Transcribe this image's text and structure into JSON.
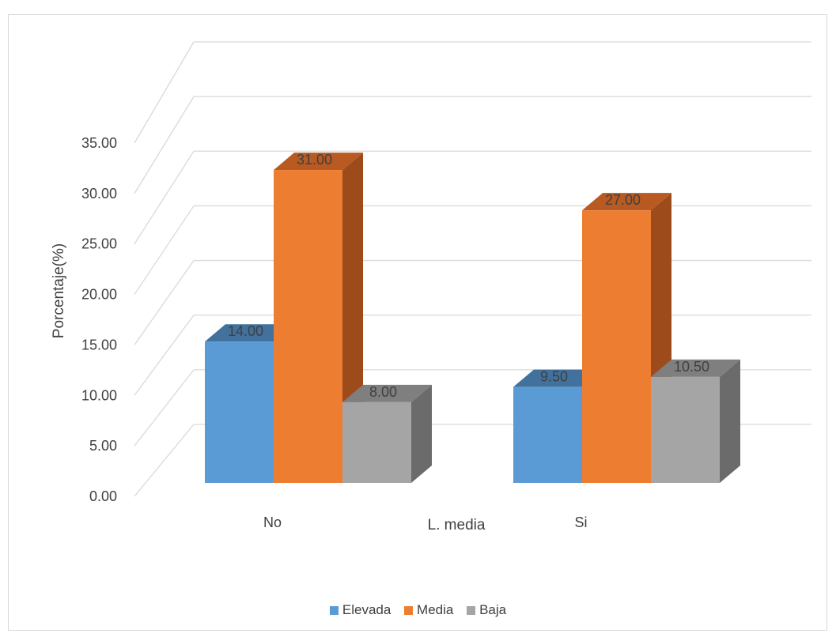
{
  "chart_data": {
    "type": "bar",
    "subtype": "3d-clustered-column",
    "title": "",
    "xlabel": "L. media",
    "ylabel": "Porcentaje(%)",
    "ylim": [
      0,
      35
    ],
    "yticks": [
      "0.00",
      "5.00",
      "10.00",
      "15.00",
      "20.00",
      "25.00",
      "30.00",
      "35.00"
    ],
    "categories": [
      "No",
      "Si"
    ],
    "series": [
      {
        "name": "Elevada",
        "values": [
          14.0,
          9.5
        ],
        "labels": [
          "14.00",
          "9.50"
        ],
        "color": "#5b9bd5"
      },
      {
        "name": "Media",
        "values": [
          31.0,
          27.0
        ],
        "labels": [
          "31.00",
          "27.00"
        ],
        "color": "#ed7d31"
      },
      {
        "name": "Baja",
        "values": [
          8.0,
          10.5
        ],
        "labels": [
          "8.00",
          "10.50"
        ],
        "color": "#a5a5a5"
      }
    ],
    "grid": true,
    "legend": "bottom"
  }
}
